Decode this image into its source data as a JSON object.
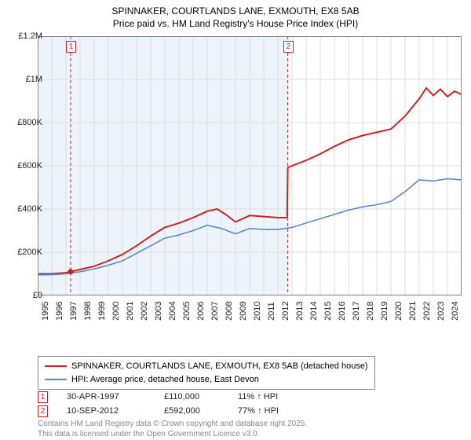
{
  "title_line1": "SPINNAKER, COURTLANDS LANE, EXMOUTH, EX8 5AB",
  "title_line2": "Price paid vs. HM Land Registry's House Price Index (HPI)",
  "chart": {
    "type": "line",
    "background_color": "#ffffff",
    "plot_border_color": "#888888",
    "grid_color": "#dddddd",
    "shade_color": "#eef4fb",
    "title_fontsize": 12,
    "tick_fontsize": 11,
    "x": {
      "min": 1995,
      "max": 2025,
      "ticks": [
        1995,
        1996,
        1997,
        1998,
        1999,
        2000,
        2001,
        2002,
        2003,
        2004,
        2005,
        2006,
        2007,
        2008,
        2009,
        2010,
        2011,
        2012,
        2013,
        2014,
        2015,
        2016,
        2017,
        2018,
        2019,
        2020,
        2021,
        2022,
        2023,
        2024
      ]
    },
    "y": {
      "min": 0,
      "max": 1200000,
      "ticks": [
        {
          "v": 0,
          "label": "£0"
        },
        {
          "v": 200000,
          "label": "£200K"
        },
        {
          "v": 400000,
          "label": "£400K"
        },
        {
          "v": 600000,
          "label": "£600K"
        },
        {
          "v": 800000,
          "label": "£800K"
        },
        {
          "v": 1000000,
          "label": "£1M"
        },
        {
          "v": 1200000,
          "label": "£1.2M"
        }
      ]
    },
    "shade_x_range": [
      1995,
      2012.7
    ],
    "event_lines": [
      {
        "num": "1",
        "x": 1997.33,
        "color": "#d02020",
        "dash": "4,3"
      },
      {
        "num": "2",
        "x": 2012.7,
        "color": "#d02020",
        "dash": "4,3"
      }
    ],
    "series": [
      {
        "name": "SPINNAKER, COURTLANDS LANE, EXMOUTH, EX8 5AB (detached house)",
        "color": "#d02020",
        "width": 2,
        "points": [
          [
            1995.0,
            100000
          ],
          [
            1996.0,
            100000
          ],
          [
            1997.0,
            105000
          ],
          [
            1997.33,
            110000
          ],
          [
            1998.0,
            120000
          ],
          [
            1999.0,
            135000
          ],
          [
            2000.0,
            160000
          ],
          [
            2001.0,
            190000
          ],
          [
            2002.0,
            230000
          ],
          [
            2003.0,
            275000
          ],
          [
            2004.0,
            315000
          ],
          [
            2005.0,
            335000
          ],
          [
            2006.0,
            360000
          ],
          [
            2007.0,
            390000
          ],
          [
            2007.7,
            400000
          ],
          [
            2008.3,
            375000
          ],
          [
            2009.0,
            340000
          ],
          [
            2010.0,
            370000
          ],
          [
            2011.0,
            365000
          ],
          [
            2012.0,
            360000
          ],
          [
            2012.65,
            360000
          ],
          [
            2012.7,
            592000
          ],
          [
            2013.0,
            600000
          ],
          [
            2014.0,
            625000
          ],
          [
            2015.0,
            655000
          ],
          [
            2016.0,
            690000
          ],
          [
            2017.0,
            720000
          ],
          [
            2018.0,
            740000
          ],
          [
            2019.0,
            755000
          ],
          [
            2020.0,
            770000
          ],
          [
            2021.0,
            830000
          ],
          [
            2022.0,
            910000
          ],
          [
            2022.5,
            960000
          ],
          [
            2023.0,
            925000
          ],
          [
            2023.5,
            955000
          ],
          [
            2024.0,
            920000
          ],
          [
            2024.5,
            945000
          ],
          [
            2025.0,
            930000
          ]
        ]
      },
      {
        "name": "HPI: Average price, detached house, East Devon",
        "color": "#5a88c6",
        "width": 1.6,
        "points": [
          [
            1995.0,
            95000
          ],
          [
            1996.0,
            96000
          ],
          [
            1997.0,
            100000
          ],
          [
            1998.0,
            110000
          ],
          [
            1999.0,
            122000
          ],
          [
            2000.0,
            140000
          ],
          [
            2001.0,
            160000
          ],
          [
            2002.0,
            195000
          ],
          [
            2003.0,
            230000
          ],
          [
            2004.0,
            265000
          ],
          [
            2005.0,
            280000
          ],
          [
            2006.0,
            300000
          ],
          [
            2007.0,
            325000
          ],
          [
            2008.0,
            310000
          ],
          [
            2009.0,
            285000
          ],
          [
            2010.0,
            310000
          ],
          [
            2011.0,
            305000
          ],
          [
            2012.0,
            305000
          ],
          [
            2013.0,
            315000
          ],
          [
            2014.0,
            335000
          ],
          [
            2015.0,
            355000
          ],
          [
            2016.0,
            375000
          ],
          [
            2017.0,
            395000
          ],
          [
            2018.0,
            410000
          ],
          [
            2019.0,
            420000
          ],
          [
            2020.0,
            435000
          ],
          [
            2021.0,
            480000
          ],
          [
            2022.0,
            535000
          ],
          [
            2023.0,
            530000
          ],
          [
            2024.0,
            540000
          ],
          [
            2025.0,
            535000
          ]
        ]
      }
    ],
    "sale_markers": [
      {
        "x": 1997.33,
        "y": 110000,
        "color": "#d02020"
      }
    ]
  },
  "legend": {
    "items": [
      {
        "color": "#d02020",
        "label": "SPINNAKER, COURTLANDS LANE, EXMOUTH, EX8 5AB (detached house)"
      },
      {
        "color": "#5a88c6",
        "label": "HPI: Average price, detached house, East Devon"
      }
    ]
  },
  "events": [
    {
      "num": "1",
      "date": "30-APR-1997",
      "price": "£110,000",
      "pct": "11% ↑ HPI"
    },
    {
      "num": "2",
      "date": "10-SEP-2012",
      "price": "£592,000",
      "pct": "77% ↑ HPI"
    }
  ],
  "footer_line1": "Contains HM Land Registry data © Crown copyright and database right 2025.",
  "footer_line2": "This data is licensed under the Open Government Licence v3.0."
}
